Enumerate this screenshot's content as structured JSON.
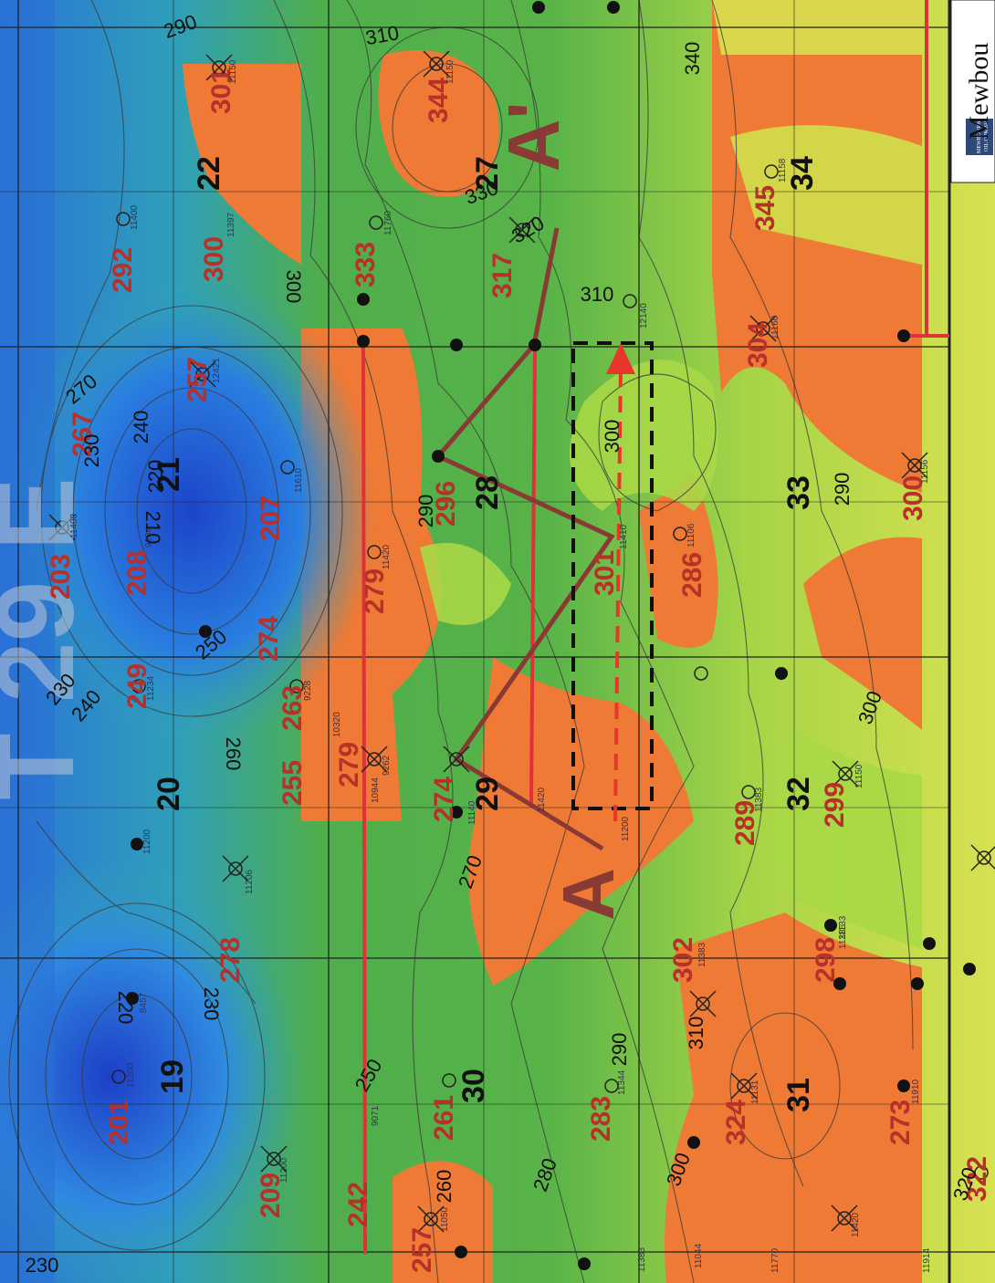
{
  "company": {
    "name": "Mewbou",
    "logo_line1": "MEWBOURNE",
    "logo_line2": "OIL COMPANY"
  },
  "township_label": "T 29 E",
  "cross_section": {
    "start_label": "A",
    "end_label": "A'"
  },
  "sections": [
    "19",
    "20",
    "21",
    "22",
    "27",
    "28",
    "29",
    "30",
    "31",
    "32",
    "33",
    "34"
  ],
  "posted_values": [
    "201",
    "203",
    "207",
    "208",
    "209",
    "242",
    "249",
    "255",
    "257",
    "257",
    "261",
    "263",
    "267",
    "273",
    "274",
    "278",
    "279",
    "283",
    "286",
    "289",
    "292",
    "296",
    "298",
    "299",
    "300",
    "300",
    "301",
    "301",
    "302",
    "304",
    "317",
    "322",
    "324",
    "333",
    "344",
    "345",
    "279",
    "274"
  ],
  "contour_labels": [
    "210",
    "220",
    "220",
    "230",
    "230",
    "230",
    "230",
    "240",
    "240",
    "250",
    "250",
    "260",
    "260",
    "270",
    "270",
    "280",
    "290",
    "290",
    "290",
    "300",
    "300",
    "300",
    "300",
    "310",
    "310",
    "310",
    "320",
    "320",
    "330",
    "340",
    "290"
  ],
  "well_ids": [
    "11200",
    "11200",
    "9071",
    "11050",
    "8457",
    "11200",
    "11206",
    "9262",
    "9228",
    "10320",
    "11234",
    "9234",
    "11408",
    "11610",
    "12421",
    "11397",
    "11400",
    "11150",
    "11150",
    "11420",
    "10944",
    "11140",
    "11760",
    "12140",
    "11410",
    "11344",
    "11383",
    "11383",
    "11420",
    "11106",
    "11200",
    "11156",
    "11160",
    "11158",
    "11131",
    "11150",
    "11420",
    "11914",
    "11910",
    "11133",
    "11770",
    "11044",
    "11385",
    "11383"
  ],
  "colors": {
    "blue_deep": "#1f4fd0",
    "blue": "#2f86dd",
    "teal": "#36a9a0",
    "green": "#54b049",
    "light_green": "#a8d846",
    "yellow_green": "#cfe04a",
    "orange": "#ee7a35",
    "red_orange": "#e85b30",
    "xsec_line": "#8a3a35",
    "well_path": "#e0303a",
    "arrow": "#e8362b"
  }
}
